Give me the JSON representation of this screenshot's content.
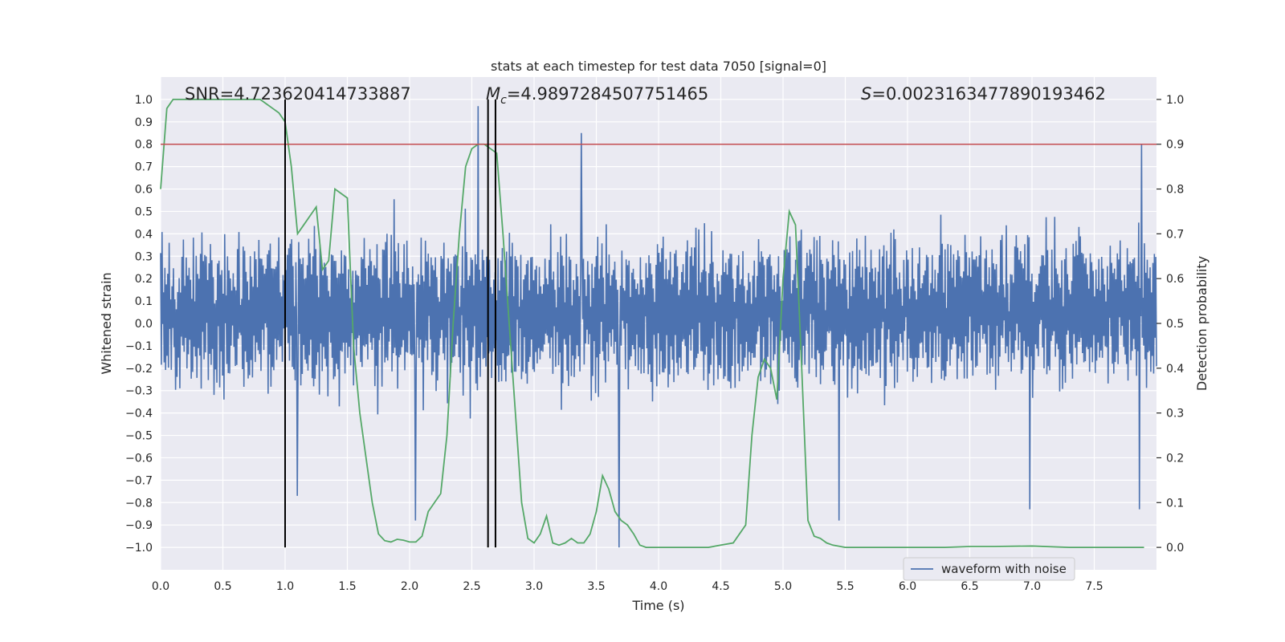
{
  "chart_data": {
    "type": "line",
    "title": "stats at each timestep for test data 7050 [signal=0]",
    "xlabel": "Time (s)",
    "ylabel": "Whitened strain",
    "y2label": "Detection probability",
    "xlim": [
      0.0,
      8.0
    ],
    "ylim": [
      -1.1,
      1.1
    ],
    "y2lim": [
      -0.05,
      1.05
    ],
    "xticks": [
      "0.0",
      "0.5",
      "1.0",
      "1.5",
      "2.0",
      "2.5",
      "3.0",
      "3.5",
      "4.0",
      "4.5",
      "5.0",
      "5.5",
      "6.0",
      "6.5",
      "7.0",
      "7.5"
    ],
    "xtick_values": [
      0.0,
      0.5,
      1.0,
      1.5,
      2.0,
      2.5,
      3.0,
      3.5,
      4.0,
      4.5,
      5.0,
      5.5,
      6.0,
      6.5,
      7.0,
      7.5
    ],
    "yticks": [
      "−1.0",
      "−0.9",
      "−0.8",
      "−0.7",
      "−0.6",
      "−0.5",
      "−0.4",
      "−0.3",
      "−0.2",
      "−0.1",
      "0.0",
      "0.1",
      "0.2",
      "0.3",
      "0.4",
      "0.5",
      "0.6",
      "0.7",
      "0.8",
      "0.9",
      "1.0"
    ],
    "ytick_values": [
      -1.0,
      -0.9,
      -0.8,
      -0.7,
      -0.6,
      -0.5,
      -0.4,
      -0.3,
      -0.2,
      -0.1,
      0.0,
      0.1,
      0.2,
      0.3,
      0.4,
      0.5,
      0.6,
      0.7,
      0.8,
      0.9,
      1.0
    ],
    "y2ticks": [
      "0.0",
      "0.1",
      "0.2",
      "0.3",
      "0.4",
      "0.5",
      "0.6",
      "0.7",
      "0.8",
      "0.9",
      "1.0"
    ],
    "y2tick_values": [
      0.0,
      0.1,
      0.2,
      0.3,
      0.4,
      0.5,
      0.6,
      0.7,
      0.8,
      0.9,
      1.0
    ],
    "annotations": {
      "snr": "SNR=4.723620414733887",
      "mc_symbol": "M",
      "mc_sub": "c",
      "mc_value": "=4.9897284507751465",
      "s_symbol": "S",
      "s_value": "=0.0023163477890193462"
    },
    "legend": {
      "label": "waveform with noise",
      "position": "lower-right"
    },
    "threshold_probability": 0.9,
    "vertical_lines_s": [
      1.0,
      2.63,
      2.69
    ],
    "waveform": {
      "name": "waveform with noise",
      "t_start": 0.0,
      "t_end": 8.0,
      "n_samples": 1400,
      "typical_range": [
        -0.35,
        0.45
      ],
      "extremes": [
        {
          "t": 2.55,
          "v": 0.97
        },
        {
          "t": 3.38,
          "v": 0.85
        },
        {
          "t": 3.68,
          "v": -1.0
        },
        {
          "t": 7.88,
          "v": 0.8
        },
        {
          "t": 7.86,
          "v": -0.83
        },
        {
          "t": 2.05,
          "v": -0.88
        },
        {
          "t": 1.1,
          "v": -0.77
        },
        {
          "t": 5.45,
          "v": -0.88
        },
        {
          "t": 6.98,
          "v": -0.83
        }
      ]
    },
    "detection_probability": {
      "name": "detection probability",
      "t": [
        0.0,
        0.05,
        0.1,
        0.15,
        0.2,
        0.3,
        0.4,
        0.5,
        0.6,
        0.7,
        0.8,
        0.85,
        0.9,
        0.95,
        1.0,
        1.05,
        1.1,
        1.15,
        1.2,
        1.25,
        1.3,
        1.35,
        1.4,
        1.45,
        1.5,
        1.55,
        1.6,
        1.65,
        1.7,
        1.75,
        1.8,
        1.85,
        1.9,
        1.95,
        2.0,
        2.05,
        2.1,
        2.15,
        2.2,
        2.25,
        2.3,
        2.35,
        2.4,
        2.45,
        2.5,
        2.55,
        2.6,
        2.65,
        2.7,
        2.75,
        2.8,
        2.85,
        2.9,
        2.95,
        3.0,
        3.05,
        3.1,
        3.15,
        3.2,
        3.25,
        3.3,
        3.35,
        3.4,
        3.45,
        3.5,
        3.55,
        3.6,
        3.65,
        3.7,
        3.75,
        3.8,
        3.85,
        3.9,
        3.95,
        4.0,
        4.05,
        4.1,
        4.2,
        4.3,
        4.4,
        4.5,
        4.6,
        4.7,
        4.75,
        4.8,
        4.85,
        4.9,
        4.95,
        5.0,
        5.05,
        5.1,
        5.15,
        5.2,
        5.25,
        5.3,
        5.35,
        5.4,
        5.5,
        5.7,
        6.0,
        6.3,
        6.5,
        6.7,
        7.0,
        7.3,
        7.6,
        7.9
      ],
      "p": [
        0.8,
        0.98,
        1.0,
        1.0,
        1.0,
        1.0,
        1.0,
        1.0,
        1.0,
        1.0,
        1.0,
        0.99,
        0.98,
        0.97,
        0.95,
        0.85,
        0.7,
        0.72,
        0.74,
        0.76,
        0.62,
        0.64,
        0.8,
        0.79,
        0.78,
        0.45,
        0.3,
        0.2,
        0.1,
        0.03,
        0.015,
        0.012,
        0.018,
        0.016,
        0.012,
        0.012,
        0.025,
        0.08,
        0.1,
        0.12,
        0.25,
        0.5,
        0.7,
        0.85,
        0.89,
        0.9,
        0.9,
        0.89,
        0.88,
        0.7,
        0.5,
        0.3,
        0.1,
        0.02,
        0.01,
        0.03,
        0.07,
        0.01,
        0.005,
        0.01,
        0.02,
        0.01,
        0.01,
        0.03,
        0.08,
        0.16,
        0.13,
        0.08,
        0.06,
        0.05,
        0.03,
        0.005,
        0.0,
        0.0,
        0.0,
        0.0,
        0.0,
        0.0,
        0.0,
        0.0,
        0.005,
        0.01,
        0.05,
        0.25,
        0.38,
        0.42,
        0.4,
        0.33,
        0.6,
        0.75,
        0.72,
        0.4,
        0.06,
        0.025,
        0.02,
        0.01,
        0.005,
        0.0,
        0.0,
        0.0,
        0.0,
        0.002,
        0.002,
        0.003,
        0.0,
        0.0,
        0.0,
        0.0,
        0.002
      ]
    }
  },
  "colors": {
    "axes_bg": "#eaeaf2",
    "grid": "#ffffff",
    "waveform": "#4c72b0",
    "probability": "#55a868",
    "threshold": "#c44e52",
    "vlines": "#000000",
    "text": "#262626"
  }
}
